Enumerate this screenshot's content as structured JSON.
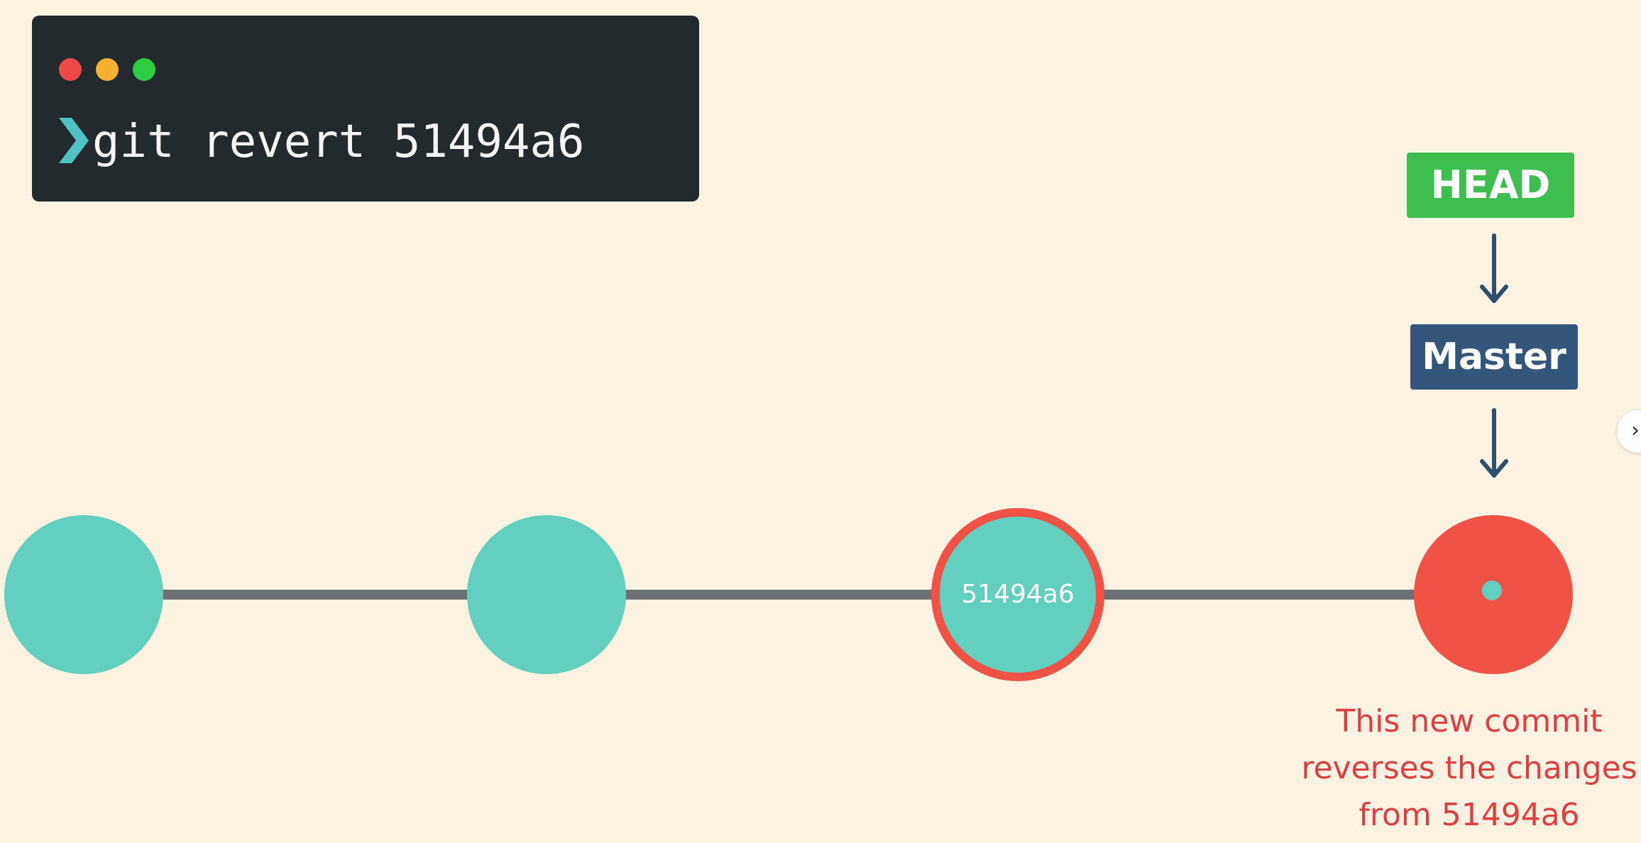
{
  "colors": {
    "background": "#fcf2e1",
    "terminal_bg": "#232a2e",
    "dot_red": "#f04747",
    "dot_yellow": "#f4b02e",
    "dot_green": "#2ecc40",
    "prompt": "#4fc3c3",
    "command_text": "#f4f4f4",
    "head_label": "#3dbe4f",
    "master_label": "#33567a",
    "arrow": "#2f4f6e",
    "line": "#6b7075",
    "commit_teal": "#63cfbf",
    "commit_red": "#f05346",
    "note_text": "#de3e3e"
  },
  "terminal": {
    "command": "git revert 51494a6",
    "prompt_icon": "chevron-right-icon"
  },
  "refs": {
    "head": "HEAD",
    "master": "Master"
  },
  "commits": [
    {
      "label": "",
      "state": "normal"
    },
    {
      "label": "",
      "state": "normal"
    },
    {
      "label": "51494a6",
      "state": "reverted"
    },
    {
      "label": "",
      "state": "new"
    }
  ],
  "note": {
    "lines": [
      "This new commit",
      "reverses the changes",
      "from 51494a6"
    ]
  },
  "side_button": {
    "icon": "chevron-right-icon",
    "glyph": "›"
  }
}
